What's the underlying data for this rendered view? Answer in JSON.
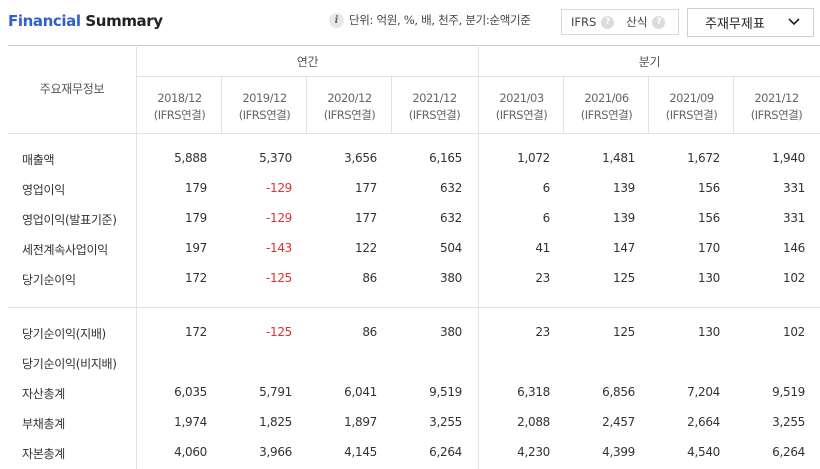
{
  "header": {
    "title_part1": "Financial",
    "title_part2": "Summary",
    "unit_text": "단위: 억원, %, 배, 천주, 분기:순액기준",
    "toggle_ifrs": "IFRS",
    "toggle_calc": "산식",
    "help_glyph": "?",
    "dropdown_value": "주재무제표"
  },
  "table": {
    "corner_label": "주요재무정보",
    "group_annual": "연간",
    "group_quarter": "분기",
    "columns": [
      {
        "period": "2018/12",
        "basis": "(IFRS연결)"
      },
      {
        "period": "2019/12",
        "basis": "(IFRS연결)"
      },
      {
        "period": "2020/12",
        "basis": "(IFRS연결)"
      },
      {
        "period": "2021/12",
        "basis": "(IFRS연결)"
      },
      {
        "period": "2021/03",
        "basis": "(IFRS연결)"
      },
      {
        "period": "2021/06",
        "basis": "(IFRS연결)"
      },
      {
        "period": "2021/09",
        "basis": "(IFRS연결)"
      },
      {
        "period": "2021/12",
        "basis": "(IFRS연결)"
      }
    ],
    "rows": [
      {
        "label": "매출액",
        "values": [
          "5,888",
          "5,370",
          "3,656",
          "6,165",
          "1,072",
          "1,481",
          "1,672",
          "1,940"
        ]
      },
      {
        "label": "영업이익",
        "values": [
          "179",
          "-129",
          "177",
          "632",
          "6",
          "139",
          "156",
          "331"
        ]
      },
      {
        "label": "영업이익(발표기준)",
        "values": [
          "179",
          "-129",
          "177",
          "632",
          "6",
          "139",
          "156",
          "331"
        ]
      },
      {
        "label": "세전계속사업이익",
        "values": [
          "197",
          "-143",
          "122",
          "504",
          "41",
          "147",
          "170",
          "146"
        ]
      },
      {
        "label": "당기순이익",
        "values": [
          "172",
          "-125",
          "86",
          "380",
          "23",
          "125",
          "130",
          "102"
        ]
      },
      {
        "label": "당기순이익(지배)",
        "values": [
          "172",
          "-125",
          "86",
          "380",
          "23",
          "125",
          "130",
          "102"
        ]
      },
      {
        "label": "당기순이익(비지배)",
        "values": [
          "",
          "",
          "",
          "",
          "",
          "",
          "",
          ""
        ]
      },
      {
        "label": "자산총계",
        "values": [
          "6,035",
          "5,791",
          "6,041",
          "9,519",
          "6,318",
          "6,856",
          "7,204",
          "9,519"
        ]
      },
      {
        "label": "부채총계",
        "values": [
          "1,974",
          "1,825",
          "1,897",
          "3,255",
          "2,088",
          "2,457",
          "2,664",
          "3,255"
        ]
      },
      {
        "label": "자본총계",
        "values": [
          "4,060",
          "3,966",
          "4,145",
          "6,264",
          "4,230",
          "4,399",
          "4,540",
          "6,264"
        ]
      }
    ]
  },
  "colors": {
    "title_accent": "#2f5fd0",
    "negative": "#e03030"
  }
}
